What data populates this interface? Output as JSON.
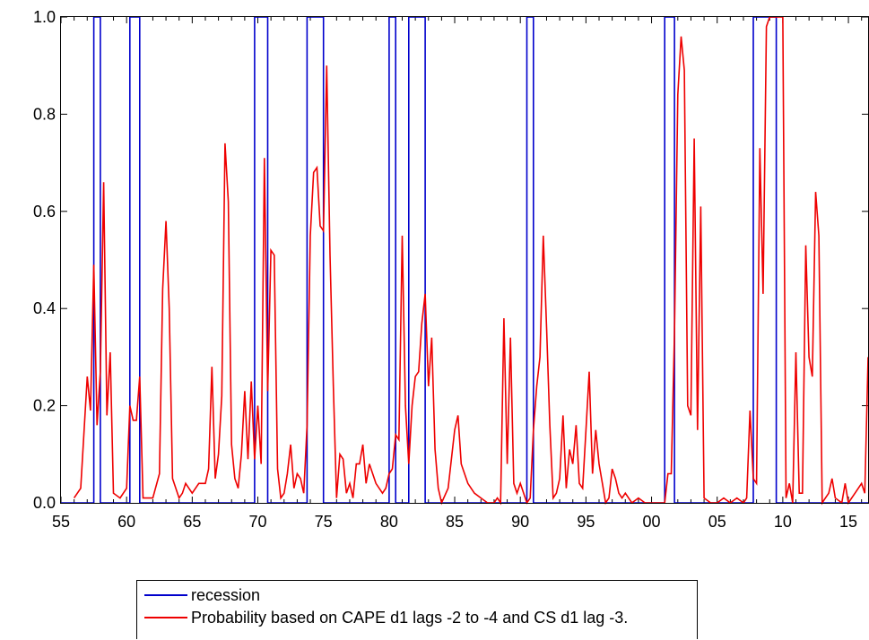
{
  "chart_data": {
    "type": "line",
    "title": "",
    "xlabel": "",
    "ylabel": "",
    "xlim": [
      1955,
      2016.5
    ],
    "ylim": [
      0,
      1
    ],
    "x_ticks": [
      1955,
      1960,
      1965,
      1970,
      1975,
      1980,
      1985,
      1990,
      1995,
      2000,
      2005,
      2010,
      2015
    ],
    "x_tick_labels": [
      "55",
      "60",
      "65",
      "70",
      "75",
      "80",
      "85",
      "90",
      "95",
      "00",
      "05",
      "10",
      "15"
    ],
    "y_ticks": [
      0,
      0.2,
      0.4,
      0.6,
      0.8,
      1.0
    ],
    "y_tick_labels": [
      "0.0",
      "0.2",
      "0.4",
      "0.6",
      "0.8",
      "1.0"
    ],
    "grid": false,
    "legend_position": "bottom",
    "series": [
      {
        "name": "recession",
        "color": "#0000cc",
        "style": "step",
        "x": [
          1955,
          1957.5,
          1957.5,
          1958.0,
          1958.0,
          1960.25,
          1960.25,
          1961.0,
          1961.0,
          1969.75,
          1969.75,
          1970.75,
          1970.75,
          1973.75,
          1973.75,
          1975.0,
          1975.0,
          1980.0,
          1980.0,
          1980.5,
          1980.5,
          1981.5,
          1981.5,
          1982.75,
          1982.75,
          1990.5,
          1990.5,
          1991.0,
          1991.0,
          2001.0,
          2001.0,
          2001.75,
          2001.75,
          2007.75,
          2007.75,
          2009.5,
          2009.5,
          2016.5
        ],
        "y": [
          0,
          0,
          1,
          1,
          0,
          0,
          1,
          1,
          0,
          0,
          1,
          1,
          0,
          0,
          1,
          1,
          0,
          0,
          1,
          1,
          0,
          0,
          1,
          1,
          0,
          0,
          1,
          1,
          0,
          0,
          1,
          1,
          0,
          0,
          1,
          1,
          0,
          0
        ]
      },
      {
        "name": "Probability based on CAPE d1 lags -2 to -4 and CS d1 lag -3.",
        "color": "#ee0000",
        "style": "line",
        "x": [
          1956.0,
          1956.5,
          1957.0,
          1957.25,
          1957.5,
          1957.75,
          1958.0,
          1958.25,
          1958.5,
          1958.75,
          1959.0,
          1959.5,
          1960.0,
          1960.25,
          1960.5,
          1960.75,
          1961.0,
          1961.25,
          1961.5,
          1962.0,
          1962.5,
          1962.75,
          1963.0,
          1963.25,
          1963.5,
          1964.0,
          1964.25,
          1964.5,
          1965.0,
          1965.5,
          1966.0,
          1966.25,
          1966.5,
          1966.75,
          1967.0,
          1967.25,
          1967.5,
          1967.75,
          1968.0,
          1968.25,
          1968.5,
          1968.75,
          1969.0,
          1969.25,
          1969.5,
          1969.75,
          1970.0,
          1970.25,
          1970.5,
          1970.75,
          1971.0,
          1971.25,
          1971.5,
          1971.75,
          1972.0,
          1972.25,
          1972.5,
          1972.75,
          1973.0,
          1973.25,
          1973.5,
          1973.75,
          1974.0,
          1974.25,
          1974.5,
          1974.75,
          1975.0,
          1975.25,
          1975.5,
          1975.75,
          1976.0,
          1976.25,
          1976.5,
          1976.75,
          1977.0,
          1977.25,
          1977.5,
          1977.75,
          1978.0,
          1978.25,
          1978.5,
          1979.0,
          1979.5,
          1979.75,
          1980.0,
          1980.25,
          1980.5,
          1980.75,
          1981.0,
          1981.25,
          1981.5,
          1981.75,
          1982.0,
          1982.25,
          1982.5,
          1982.75,
          1983.0,
          1983.25,
          1983.5,
          1983.75,
          1984.0,
          1984.5,
          1985.0,
          1985.25,
          1985.5,
          1986.0,
          1986.5,
          1987.0,
          1987.5,
          1988.0,
          1988.25,
          1988.5,
          1988.75,
          1989.0,
          1989.25,
          1989.5,
          1989.75,
          1990.0,
          1990.25,
          1990.5,
          1990.75,
          1991.0,
          1991.25,
          1991.5,
          1991.75,
          1992.0,
          1992.25,
          1992.5,
          1992.75,
          1993.0,
          1993.25,
          1993.5,
          1993.75,
          1994.0,
          1994.25,
          1994.5,
          1994.75,
          1995.0,
          1995.25,
          1995.5,
          1995.75,
          1996.0,
          1996.25,
          1996.5,
          1996.75,
          1997.0,
          1997.25,
          1997.5,
          1997.75,
          1998.0,
          1998.5,
          1999.0,
          1999.5,
          2000.0,
          2000.5,
          2001.0,
          2001.25,
          2001.5,
          2001.75,
          2002.0,
          2002.25,
          2002.5,
          2002.75,
          2003.0,
          2003.25,
          2003.5,
          2003.75,
          2004.0,
          2004.5,
          2005.0,
          2005.5,
          2006.0,
          2006.5,
          2007.0,
          2007.25,
          2007.5,
          2007.75,
          2008.0,
          2008.25,
          2008.5,
          2008.75,
          2009.0,
          2009.25,
          2009.5,
          2009.75,
          2010.0,
          2010.25,
          2010.5,
          2010.75,
          2011.0,
          2011.25,
          2011.5,
          2011.75,
          2012.0,
          2012.25,
          2012.5,
          2012.75,
          2013.0,
          2013.25,
          2013.5,
          2013.75,
          2014.0,
          2014.5,
          2014.75,
          2015.0,
          2015.5,
          2016.0,
          2016.25,
          2016.5
        ],
        "y": [
          0.01,
          0.03,
          0.26,
          0.19,
          0.49,
          0.16,
          0.27,
          0.66,
          0.18,
          0.31,
          0.02,
          0.01,
          0.03,
          0.2,
          0.17,
          0.17,
          0.26,
          0.01,
          0.01,
          0.01,
          0.06,
          0.44,
          0.58,
          0.4,
          0.05,
          0.01,
          0.02,
          0.04,
          0.02,
          0.04,
          0.04,
          0.07,
          0.28,
          0.05,
          0.1,
          0.22,
          0.74,
          0.62,
          0.12,
          0.05,
          0.03,
          0.1,
          0.23,
          0.09,
          0.25,
          0.09,
          0.2,
          0.08,
          0.71,
          0.23,
          0.52,
          0.51,
          0.07,
          0.01,
          0.02,
          0.06,
          0.12,
          0.03,
          0.06,
          0.05,
          0.02,
          0.16,
          0.55,
          0.68,
          0.69,
          0.57,
          0.56,
          0.9,
          0.51,
          0.24,
          0.01,
          0.1,
          0.09,
          0.02,
          0.04,
          0.01,
          0.08,
          0.08,
          0.12,
          0.04,
          0.08,
          0.04,
          0.02,
          0.03,
          0.06,
          0.07,
          0.14,
          0.13,
          0.55,
          0.2,
          0.08,
          0.2,
          0.26,
          0.27,
          0.37,
          0.43,
          0.24,
          0.34,
          0.11,
          0.03,
          0.0,
          0.03,
          0.15,
          0.18,
          0.08,
          0.04,
          0.02,
          0.01,
          0.0,
          0.0,
          0.01,
          0.0,
          0.38,
          0.08,
          0.34,
          0.04,
          0.02,
          0.04,
          0.02,
          0.0,
          0.01,
          0.15,
          0.24,
          0.3,
          0.55,
          0.36,
          0.16,
          0.01,
          0.02,
          0.05,
          0.18,
          0.03,
          0.11,
          0.08,
          0.16,
          0.04,
          0.03,
          0.15,
          0.27,
          0.06,
          0.15,
          0.08,
          0.04,
          0.0,
          0.01,
          0.07,
          0.05,
          0.02,
          0.01,
          0.02,
          0.0,
          0.01,
          0.0,
          0.0,
          0.0,
          0.0,
          0.06,
          0.06,
          0.35,
          0.84,
          0.96,
          0.89,
          0.2,
          0.18,
          0.75,
          0.15,
          0.61,
          0.01,
          0.0,
          0.0,
          0.01,
          0.0,
          0.01,
          0.0,
          0.01,
          0.19,
          0.05,
          0.04,
          0.73,
          0.43,
          0.98,
          1.0,
          1.0,
          1.0,
          1.0,
          1.0,
          0.01,
          0.04,
          0.0,
          0.31,
          0.02,
          0.02,
          0.53,
          0.3,
          0.26,
          0.64,
          0.55,
          0.0,
          0.01,
          0.02,
          0.05,
          0.01,
          0.0,
          0.04,
          0.0,
          0.02,
          0.04,
          0.02,
          0.3
        ]
      }
    ]
  }
}
